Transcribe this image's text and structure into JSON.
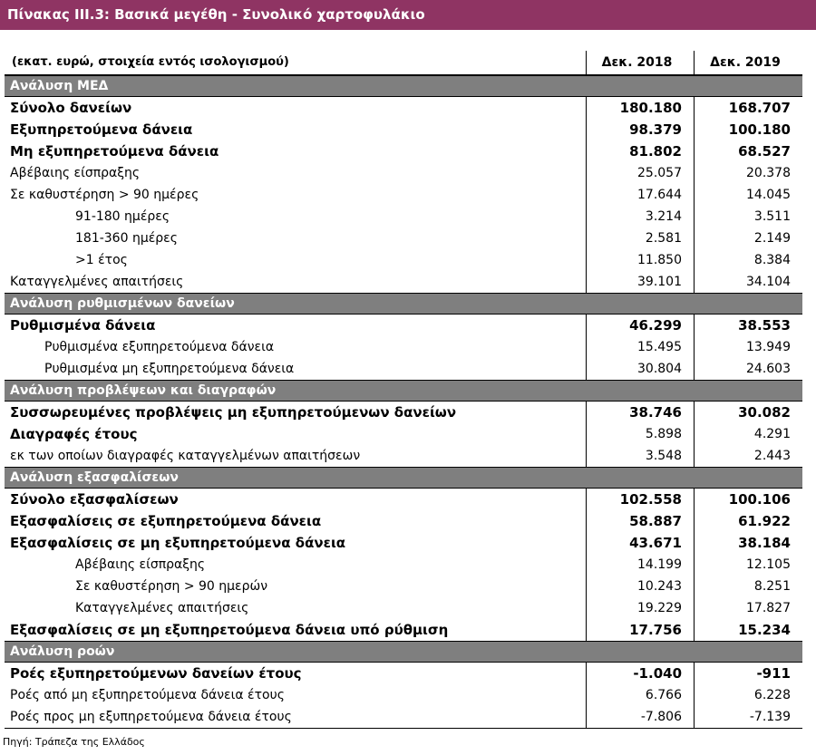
{
  "title": "Πίνακας  ΙΙΙ.3: Βασικά μεγέθη - Συνολικό χαρτοφυλάκιο",
  "header": {
    "label": "(εκατ. ευρώ, στοιχεία εντός ισολογισμού)",
    "col1": "Δεκ. 2018",
    "col2": "Δεκ. 2019"
  },
  "rows": [
    {
      "type": "section",
      "label": "Ανάλυση ΜΕΔ"
    },
    {
      "type": "bold",
      "label": "Σύνολο δανείων",
      "v1": "180.180",
      "v2": "168.707"
    },
    {
      "type": "bold",
      "label": "Εξυπηρετούμενα δάνεια",
      "v1": "98.379",
      "v2": "100.180"
    },
    {
      "type": "bold",
      "label": "Μη εξυπηρετούμενα δάνεια",
      "v1": "81.802",
      "v2": "68.527"
    },
    {
      "type": "normal",
      "label": "Αβέβαιης είσπραξης",
      "v1": "25.057",
      "v2": "20.378"
    },
    {
      "type": "normal",
      "label": "Σε καθυστέρηση > 90 ημέρες",
      "v1": "17.644",
      "v2": "14.045"
    },
    {
      "type": "ind2",
      "label": "91-180 ημέρες",
      "v1": "3.214",
      "v2": "3.511"
    },
    {
      "type": "ind2",
      "label": "181-360 ημέρες",
      "v1": "2.581",
      "v2": "2.149"
    },
    {
      "type": "ind2",
      "label": ">1 έτος",
      "v1": "11.850",
      "v2": "8.384"
    },
    {
      "type": "normal",
      "label": "Καταγγελμένες απαιτήσεις",
      "v1": "39.101",
      "v2": "34.104"
    },
    {
      "type": "section",
      "label": "Ανάλυση ρυθμισμένων δανείων"
    },
    {
      "type": "bold",
      "label": "Ρυθμισμένα δάνεια",
      "v1": "46.299",
      "v2": "38.553"
    },
    {
      "type": "ind1",
      "label": "Ρυθμισμένα εξυπηρετούμενα δάνεια",
      "v1": "15.495",
      "v2": "13.949"
    },
    {
      "type": "ind1",
      "label": "Ρυθμισμένα μη εξυπηρετούμενα δάνεια",
      "v1": "30.804",
      "v2": "24.603"
    },
    {
      "type": "section",
      "label": "Ανάλυση προβλέψεων και διαγραφών"
    },
    {
      "type": "bold",
      "label": "Συσσωρευμένες προβλέψεις μη εξυπηρετούμενων δανείων",
      "v1": "38.746",
      "v2": "30.082"
    },
    {
      "type": "boldlabel",
      "label": "Διαγραφές έτους",
      "v1": "5.898",
      "v2": "4.291"
    },
    {
      "type": "normal",
      "label": "εκ των οποίων διαγραφές καταγγελμένων απαιτήσεων",
      "v1": "3.548",
      "v2": "2.443"
    },
    {
      "type": "section",
      "label": "Ανάλυση εξασφαλίσεων"
    },
    {
      "type": "bold",
      "label": "Σύνολο εξασφαλίσεων",
      "v1": "102.558",
      "v2": "100.106"
    },
    {
      "type": "bold",
      "label": "Εξασφαλίσεις σε εξυπηρετούμενα δάνεια",
      "v1": "58.887",
      "v2": "61.922"
    },
    {
      "type": "bold",
      "label": "Εξασφαλίσεις σε μη εξυπηρετούμενα δάνεια",
      "v1": "43.671",
      "v2": "38.184"
    },
    {
      "type": "ind2",
      "label": "Αβέβαιης είσπραξης",
      "v1": "14.199",
      "v2": "12.105"
    },
    {
      "type": "ind2",
      "label": "Σε καθυστέρηση > 90 ημερών",
      "v1": "10.243",
      "v2": "8.251"
    },
    {
      "type": "ind2",
      "label": "Καταγγελμένες απαιτήσεις",
      "v1": "19.229",
      "v2": "17.827"
    },
    {
      "type": "bold",
      "label": "Εξασφαλίσεις σε μη εξυπηρετούμενα δάνεια υπό ρύθμιση",
      "v1": "17.756",
      "v2": "15.234"
    },
    {
      "type": "section",
      "label": "Ανάλυση ροών"
    },
    {
      "type": "bold",
      "label": "Ροές εξυπηρετούμενων δανείων  έτους",
      "v1": "-1.040",
      "v2": "-911"
    },
    {
      "type": "normal",
      "label": "Ροές από μη εξυπηρετούμενα δάνεια έτους",
      "v1": "6.766",
      "v2": "6.228"
    },
    {
      "type": "normal",
      "label": "Ροές προς μη εξυπηρετούμενα δάνεια  έτους",
      "v1": "-7.806",
      "v2": "-7.139"
    }
  ],
  "source": "Πηγή: Τράπεζα της Ελλάδος"
}
